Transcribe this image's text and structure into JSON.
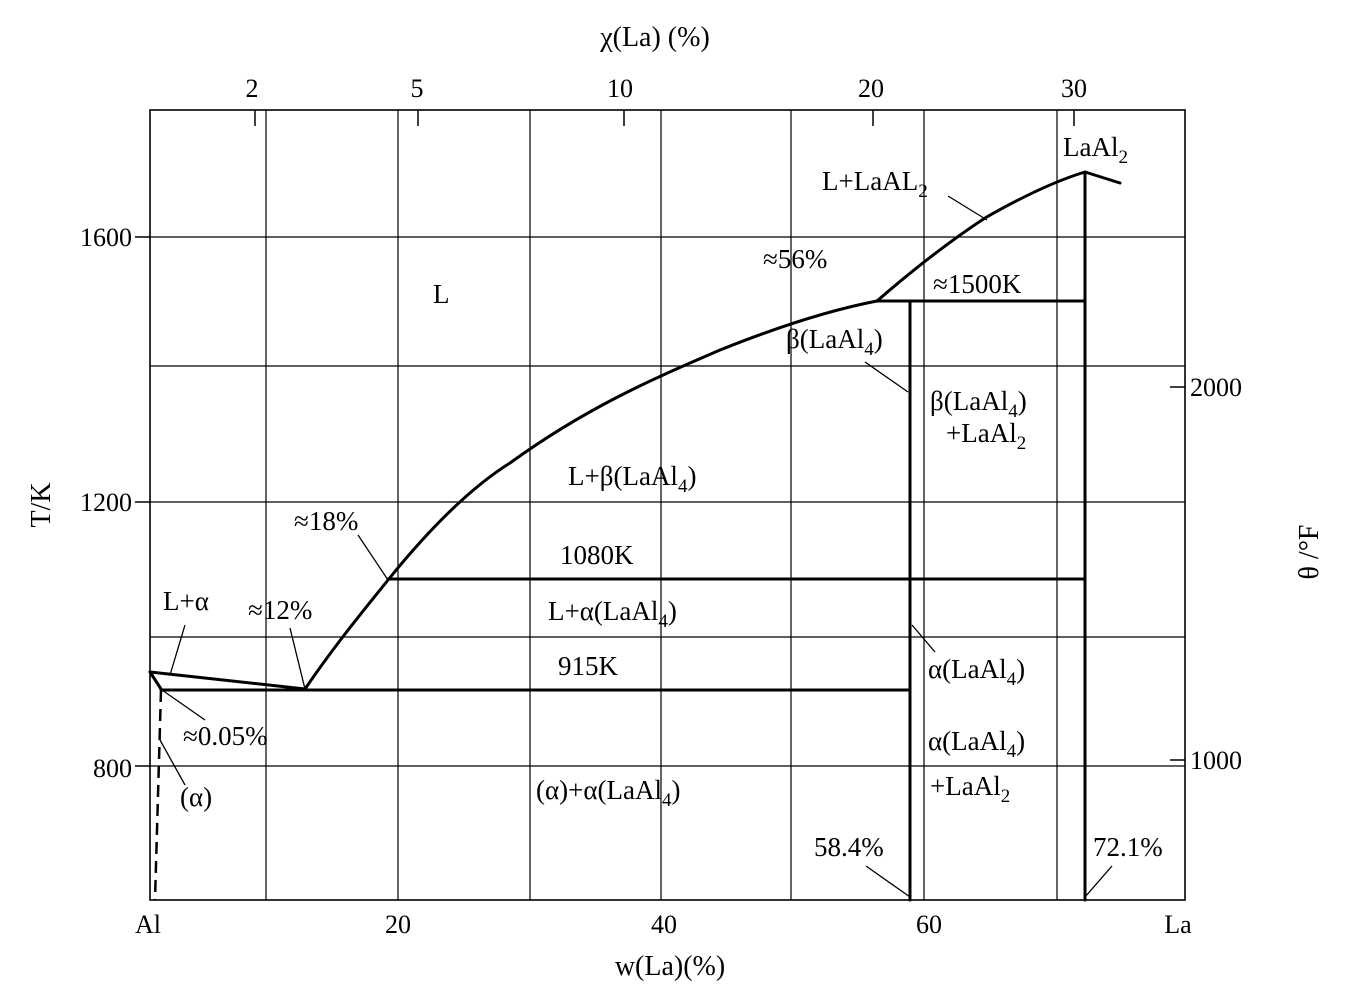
{
  "axes": {
    "top_title": "χ(La) (%)",
    "bottom_title": "w(La)(%)",
    "left_title": "T/K",
    "right_title": "θ /°F",
    "top_ticks": [
      "2",
      "5",
      "10",
      "20",
      "30"
    ],
    "bottom_ticks": [
      "Al",
      "20",
      "40",
      "60",
      "La"
    ],
    "left_ticks": [
      "1600",
      "1200",
      "800"
    ],
    "right_ticks": [
      "2000",
      "1000"
    ]
  },
  "regions": {
    "L": "L",
    "L_alpha": "L+α",
    "L_beta": "L+β(LaAl",
    "L_beta_sub": "4",
    "L_beta_close": ")",
    "L_alphaLaAl4": "L+α(LaAl",
    "L_alphaLaAl4_sub": "4",
    "L_alphaLaAl4_close": ")",
    "alpha_alphaLaAl4": "(α)+α(LaAl",
    "alpha_alphaLaAl4_sub": "4",
    "alpha_alphaLaAl4_close": ")",
    "alpha_phase": "(α)",
    "L_LaAl2": "L+LaAL",
    "L_LaAl2_sub": "2",
    "LaAl2": "LaAl",
    "LaAl2_sub": "2",
    "betaLaAl4": "β(LaAl",
    "betaLaAl4_sub": "4",
    "betaLaAl4_close": ")",
    "beta_LaAl2_line1": "β(LaAl",
    "beta_LaAl2_line1_sub": "4",
    "beta_LaAl2_line1_close": ")",
    "beta_LaAl2_line2": "+LaAl",
    "beta_LaAl2_line2_sub": "2",
    "alphaLaAl4": "α(LaAl",
    "alphaLaAl4_sub": "4",
    "alphaLaAl4_close": ")",
    "alpha_LaAl2_line1": "α(LaAl",
    "alpha_LaAl2_line1_sub": "4",
    "alpha_LaAl2_line1_close": ")",
    "alpha_LaAl2_line2": "+LaAl",
    "alpha_LaAl2_line2_sub": "2"
  },
  "annotations": {
    "t1080": "1080K",
    "t915": "915K",
    "t1500": "≈1500K",
    "p56": "≈56%",
    "p18": "≈18%",
    "p12": "≈12%",
    "p005": "≈0.05%",
    "p584": "58.4%",
    "p721": "72.1%"
  }
}
